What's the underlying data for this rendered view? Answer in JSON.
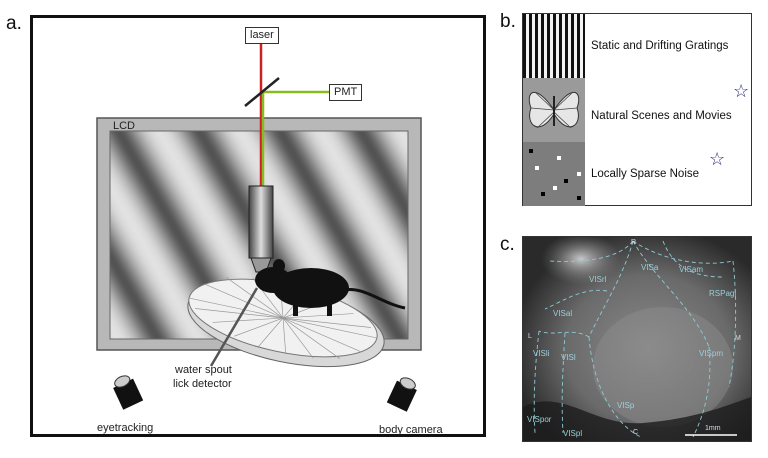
{
  "panel_letters": {
    "a": "a.",
    "b": "b.",
    "c": "c."
  },
  "panel_a": {
    "laser_label": "laser",
    "pmt_label": "PMT",
    "lcd_label": "LCD",
    "water_spout_label_1": "water spout",
    "water_spout_label_2": "lick detector",
    "eyetracking_label": "eyetracking",
    "body_camera_label": "body camera",
    "colors": {
      "laser_beam": "#cc2222",
      "pmt_beam": "#88bb22"
    }
  },
  "panel_b": {
    "stimuli": [
      {
        "label": "Static and Drifting Gratings",
        "starred": false,
        "thumbnail": "gratings"
      },
      {
        "label": "Natural Scenes and Movies",
        "starred": true,
        "thumbnail": "butterfly"
      },
      {
        "label": "Locally Sparse Noise",
        "starred": true,
        "thumbnail": "sparse-noise"
      }
    ],
    "star_glyph": "☆"
  },
  "panel_c": {
    "areas": [
      "VISrl",
      "VISa",
      "VISam",
      "RSPagl",
      "VISal",
      "VISli",
      "VISl",
      "VISpm",
      "VISp",
      "VISpor",
      "VISpl"
    ],
    "orientation": {
      "rostral": "R",
      "caudal": "C",
      "lateral": "L",
      "medial": "M"
    },
    "scale_bar_label": "1mm"
  }
}
